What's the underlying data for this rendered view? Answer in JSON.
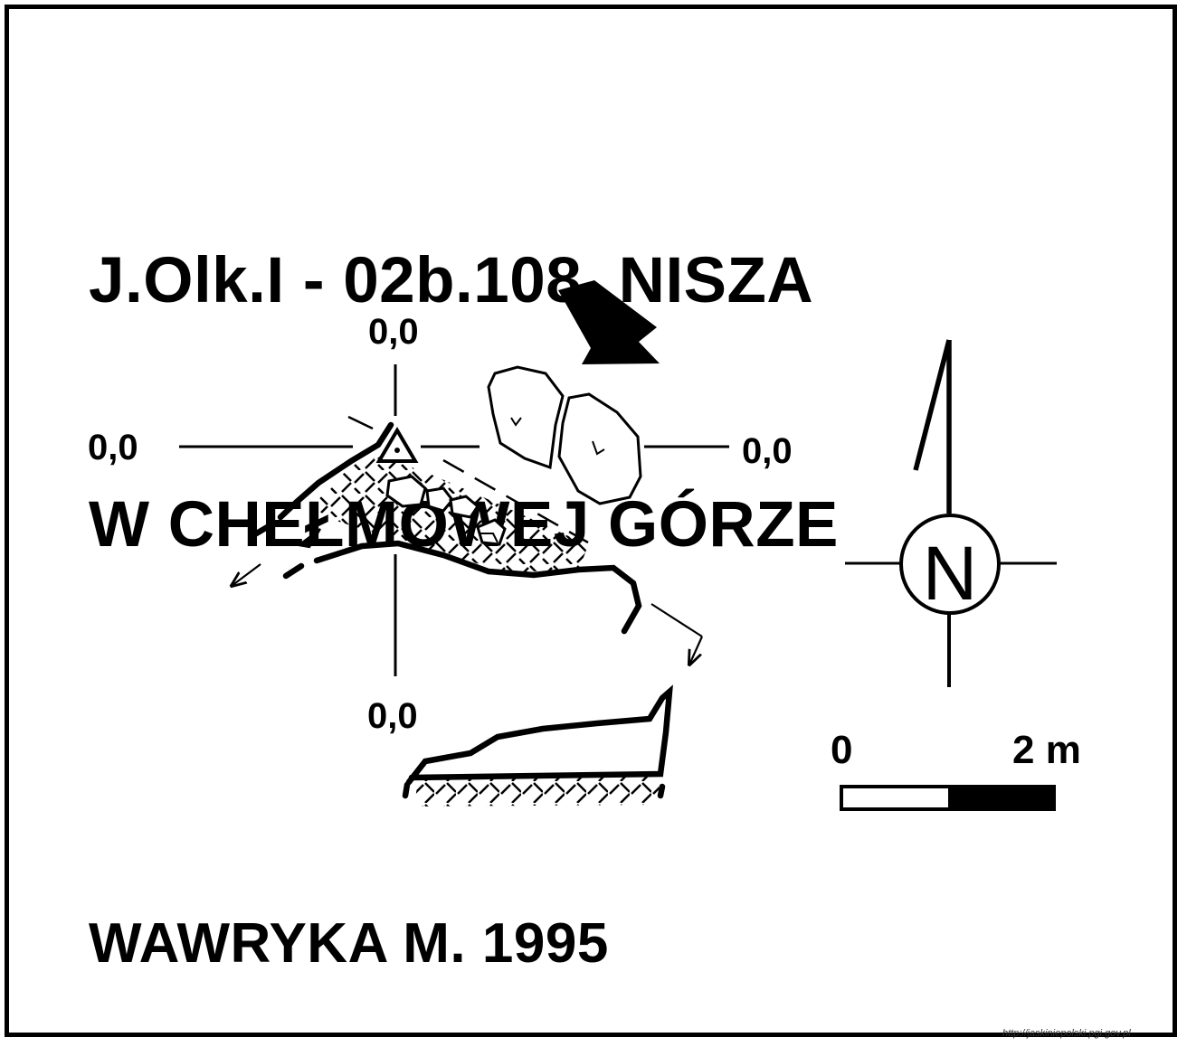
{
  "title": {
    "line1": "J.Olk.I - 02b.108  NISZA",
    "line2": "W CHEŁMOWEJ GÓRZE"
  },
  "datum_labels": {
    "top": "0,0",
    "left": "0,0",
    "right": "0,0",
    "bottom": "0,0"
  },
  "compass": {
    "label": "N"
  },
  "scale_bar": {
    "start_label": "0",
    "end_label": "2 m"
  },
  "author": "WAWRYKA M. 1995",
  "watermark": "http://jaskiniepolski.pgi.gov.pl",
  "icons": [
    "entrance-arrow-icon",
    "survey-point-icon",
    "north-arrow-icon",
    "compass-rose-icon"
  ],
  "colors": {
    "ink": "#000000",
    "paper": "#ffffff"
  }
}
